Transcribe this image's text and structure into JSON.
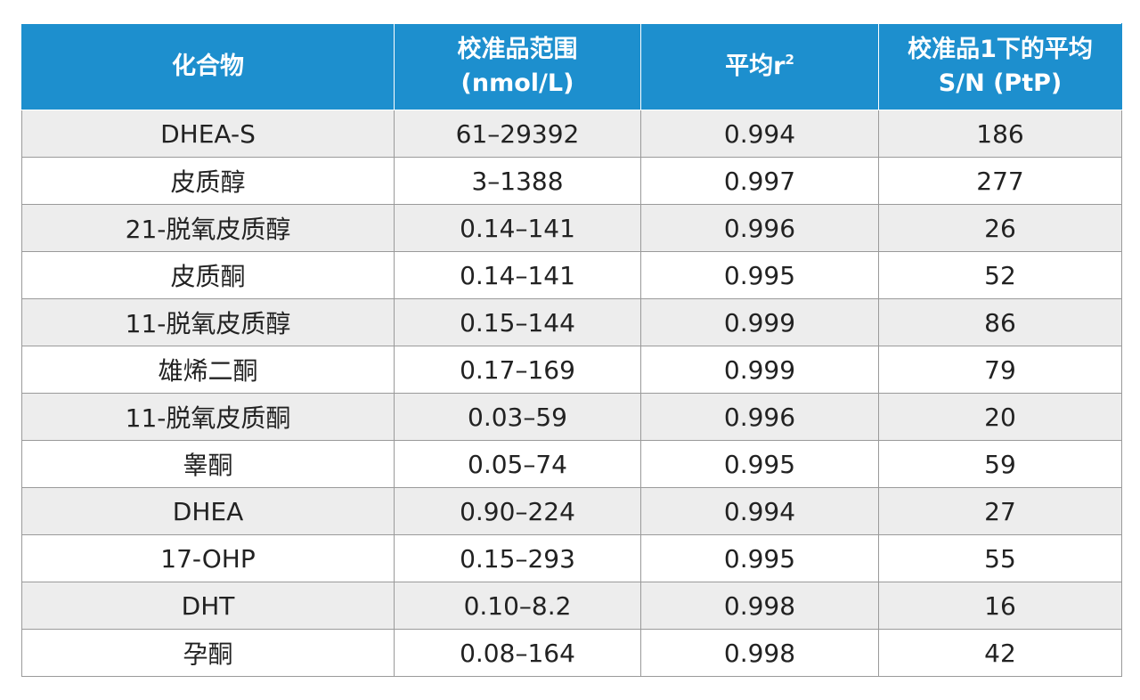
{
  "table": {
    "headers": {
      "compound": "化合物",
      "range_line1": "校准品范围",
      "range_line2": "(nmol/L)",
      "r2_text": "平均r",
      "r2_sup": "2",
      "sn_line1": "校准品1下的平均",
      "sn_line2": "S/N (PtP)"
    },
    "rows": [
      {
        "compound": "DHEA-S",
        "range": "61–29392",
        "r2": "0.994",
        "sn": "186"
      },
      {
        "compound": "皮质醇",
        "range": "3–1388",
        "r2": "0.997",
        "sn": "277"
      },
      {
        "compound": "21-脱氧皮质醇",
        "range": "0.14–141",
        "r2": "0.996",
        "sn": "26"
      },
      {
        "compound": "皮质酮",
        "range": "0.14–141",
        "r2": "0.995",
        "sn": "52"
      },
      {
        "compound": "11-脱氧皮质醇",
        "range": "0.15–144",
        "r2": "0.999",
        "sn": "86"
      },
      {
        "compound": "雄烯二酮",
        "range": "0.17–169",
        "r2": "0.999",
        "sn": "79"
      },
      {
        "compound": "11-脱氧皮质酮",
        "range": "0.03–59",
        "r2": "0.996",
        "sn": "20"
      },
      {
        "compound": "睾酮",
        "range": "0.05–74",
        "r2": "0.995",
        "sn": "59"
      },
      {
        "compound": "DHEA",
        "range": "0.90–224",
        "r2": "0.994",
        "sn": "27"
      },
      {
        "compound": "17-OHP",
        "range": "0.15–293",
        "r2": "0.995",
        "sn": "55"
      },
      {
        "compound": "DHT",
        "range": "0.10–8.2",
        "r2": "0.998",
        "sn": "16"
      },
      {
        "compound": "孕酮",
        "range": "0.08–164",
        "r2": "0.998",
        "sn": "42"
      }
    ]
  },
  "colors": {
    "header_bg": "#1d8fce",
    "header_text": "#ffffff",
    "row_alt_bg": "#ededed",
    "row_bg": "#ffffff",
    "border": "#9a9a9a"
  }
}
